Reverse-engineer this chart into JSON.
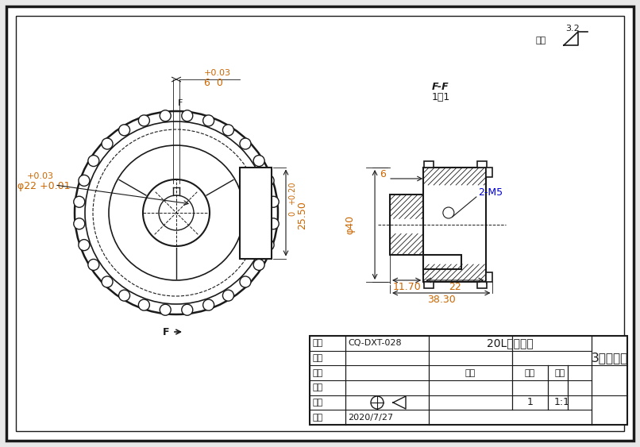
{
  "title": "20L同步带轮",
  "drawing_no": "CQ-DXT-028",
  "project": "3米定型台",
  "date": "2020/7/27",
  "scale": "1:1",
  "quantity": "1",
  "bg_color": "#e8e8e8",
  "paper_color": "#ffffff",
  "line_color": "#1a1a1a",
  "dim_color": "#cc6600",
  "green_color": "#006600",
  "blue_color": "#0000cc",
  "section_label": "F-F",
  "section_scale": "1：1",
  "roughness_value": "3.2",
  "annotations": {
    "phi22_line1": "+0.03",
    "phi22_line2": "φ22 +0.01",
    "slot_tol": "+0.03",
    "slot_dim": "6  0",
    "height_tol": "+0.20",
    "height_zero": "0",
    "height_dim": "25.50",
    "phi40": "φ40",
    "dim_6": "6",
    "dim_2m5": "2-M5",
    "dim_1170": "11.70",
    "dim_22": "22",
    "dim_3830": "38.30",
    "label_F": "F"
  }
}
